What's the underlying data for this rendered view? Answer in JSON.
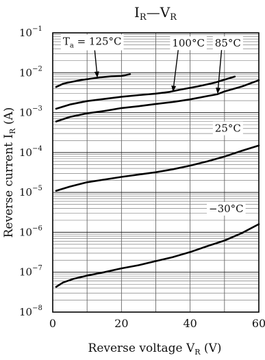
{
  "chart_data": {
    "type": "line",
    "title": {
      "main": "I",
      "main_sub": "R",
      "sep": "—",
      "rhs": "V",
      "rhs_sub": "R"
    },
    "xlabel": {
      "text": "Reverse voltage  V",
      "sub": "R",
      "unit": "  (V)"
    },
    "ylabel": {
      "text": "Reverse current  I",
      "sub": "R",
      "unit": "  (A)"
    },
    "xlim": [
      0,
      60
    ],
    "ylim": [
      1e-08,
      0.1
    ],
    "yscale": "log",
    "grid": true,
    "x_ticks": [
      0,
      20,
      40,
      60
    ],
    "x_tick_labels": [
      "0",
      "20",
      "40",
      "60"
    ],
    "y_ticks": [
      {
        "value": 0.1,
        "base": "10",
        "exp": "−1"
      },
      {
        "value": 0.01,
        "base": "10",
        "exp": "−2"
      },
      {
        "value": 0.001,
        "base": "10",
        "exp": "−3"
      },
      {
        "value": 0.0001,
        "base": "10",
        "exp": "−4"
      },
      {
        "value": 1e-05,
        "base": "10",
        "exp": "−5"
      },
      {
        "value": 1e-06,
        "base": "10",
        "exp": "−6"
      },
      {
        "value": 1e-07,
        "base": "10",
        "exp": "−7"
      },
      {
        "value": 1e-08,
        "base": "10",
        "exp": "−8"
      }
    ],
    "series": [
      {
        "name": "Ta = 125°C",
        "label_main": "T",
        "label_sub": "a",
        "label_rest": " = 125°C",
        "x": [
          1,
          3,
          5,
          8,
          11,
          14,
          17,
          20,
          22.5
        ],
        "y": [
          0.0044,
          0.0053,
          0.0058,
          0.0065,
          0.0071,
          0.0077,
          0.0081,
          0.0083,
          0.0092
        ]
      },
      {
        "name": "100°C",
        "label_main": "100°C",
        "label_sub": "",
        "label_rest": "",
        "x": [
          1,
          5,
          10,
          15,
          20,
          25,
          30,
          34,
          37,
          42,
          47,
          53
        ],
        "y": [
          0.00125,
          0.0016,
          0.00195,
          0.0022,
          0.0025,
          0.00275,
          0.003,
          0.0033,
          0.00375,
          0.0045,
          0.0056,
          0.008
        ]
      },
      {
        "name": "85°C",
        "label_main": "85°C",
        "label_sub": "",
        "label_rest": "",
        "x": [
          1,
          5,
          10,
          15,
          20,
          25,
          30,
          35,
          40,
          45,
          48,
          50,
          55,
          60
        ],
        "y": [
          0.0006,
          0.00078,
          0.00096,
          0.0011,
          0.0013,
          0.00145,
          0.00165,
          0.00185,
          0.00215,
          0.0026,
          0.0029,
          0.0034,
          0.0045,
          0.0065
        ]
      },
      {
        "name": "25°C",
        "label_main": "25°C",
        "label_sub": "",
        "label_rest": "",
        "x": [
          1,
          5,
          10,
          15,
          20,
          25,
          30,
          35,
          40,
          45,
          50,
          55,
          60
        ],
        "y": [
          1.1e-05,
          1.4e-05,
          1.8e-05,
          2.1e-05,
          2.45e-05,
          2.8e-05,
          3.2e-05,
          3.8e-05,
          4.7e-05,
          6e-05,
          7.9e-05,
          0.00011,
          0.00015
        ]
      },
      {
        "name": "−30°C",
        "label_main": "−30°C",
        "label_sub": "",
        "label_rest": "",
        "x": [
          1,
          3,
          6,
          10,
          15,
          20,
          25,
          30,
          35,
          40,
          45,
          50,
          55,
          60
        ],
        "y": [
          4.3e-08,
          5.5e-08,
          6.8e-08,
          8.2e-08,
          1e-07,
          1.25e-07,
          1.5e-07,
          1.9e-07,
          2.4e-07,
          3.2e-07,
          4.5e-07,
          6.2e-07,
          9.5e-07,
          1.6e-06
        ]
      }
    ],
    "annotations": [
      {
        "series": 0,
        "label_x": 11.5,
        "label_y": 0.05,
        "arrow_to_x": 13,
        "arrow_to_y": 0.0075
      },
      {
        "series": 1,
        "label_x": 39.5,
        "label_y": 0.045,
        "arrow_to_x": 35,
        "arrow_to_y": 0.0033
      },
      {
        "series": 2,
        "label_x": 51,
        "label_y": 0.045,
        "arrow_to_x": 48,
        "arrow_to_y": 0.00295
      },
      {
        "series": 3,
        "label_x": 51,
        "label_y": 0.00033
      },
      {
        "series": 4,
        "label_x": 50.5,
        "label_y": 3.2e-06
      }
    ]
  }
}
